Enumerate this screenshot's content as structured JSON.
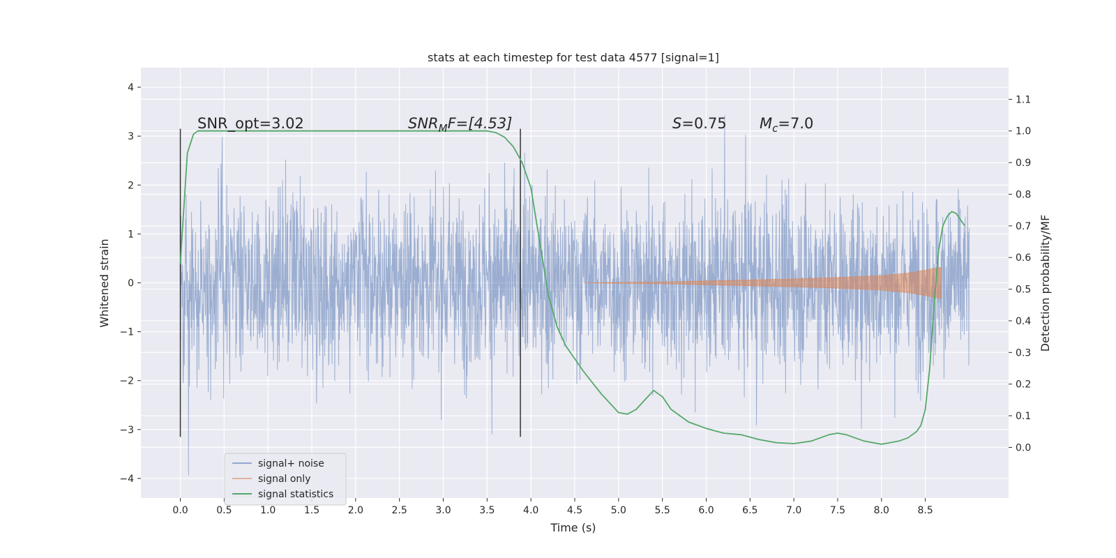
{
  "chart_data": {
    "type": "line",
    "title": "stats at each timestep for test data 4577 [signal=1]",
    "xlabel": "Time (s)",
    "ylabel": "Whitened strain",
    "y2label": "Detection probability/MF",
    "xlim": [
      -0.45,
      9.45
    ],
    "ylim": [
      -4.4,
      4.4
    ],
    "y2lim": [
      -0.16,
      1.2
    ],
    "x_ticks": [
      "0.0",
      "0.5",
      "1.0",
      "1.5",
      "2.0",
      "2.5",
      "3.0",
      "3.5",
      "4.0",
      "4.5",
      "5.0",
      "5.5",
      "6.0",
      "6.5",
      "7.0",
      "7.5",
      "8.0",
      "8.5"
    ],
    "y_ticks": [
      "4",
      "3",
      "2",
      "1",
      "0",
      "−1",
      "−2",
      "−3",
      "−4"
    ],
    "y2_ticks": [
      "1.1",
      "1.0",
      "0.9",
      "0.8",
      "0.7",
      "0.6",
      "0.5",
      "0.4",
      "0.3",
      "0.2",
      "0.1",
      "0.0"
    ],
    "grid": true,
    "legend_position": "lower-left",
    "colors": {
      "background": "#eaeaf2",
      "noise": "#4c72b0",
      "signal": "#dd8452",
      "stats": "#55a868",
      "vline": "#333333"
    },
    "annotations": {
      "snr_opt": "SNR_opt=3.02",
      "snr_mf_base": "SNR",
      "snr_mf_sub": "M",
      "snr_mf_rest": "F=[4.53]",
      "s_sym": "S",
      "s_val": "=0.75",
      "mc_sym": "M",
      "mc_sub": "c",
      "mc_val": "=7.0"
    },
    "vertical_lines_x": [
      0.0,
      3.88
    ],
    "series": [
      {
        "name": "signal+ noise",
        "x_range": [
          0.0,
          9.0
        ],
        "envelope_typical": [
          -2.5,
          2.7
        ],
        "extremes": [
          -4.0,
          4.0
        ]
      },
      {
        "name": "signal only",
        "x": [
          4.6,
          5.0,
          5.5,
          6.0,
          6.5,
          7.0,
          7.5,
          8.0,
          8.3,
          8.5,
          8.6,
          8.68
        ],
        "amplitude": [
          0.0,
          0.01,
          0.02,
          0.04,
          0.06,
          0.08,
          0.11,
          0.15,
          0.2,
          0.26,
          0.3,
          0.32
        ]
      },
      {
        "name": "signal statistics",
        "x": [
          0.0,
          0.08,
          0.15,
          0.2,
          0.3,
          0.5,
          1.0,
          2.0,
          3.0,
          3.5,
          3.6,
          3.7,
          3.8,
          3.9,
          4.0,
          4.1,
          4.2,
          4.3,
          4.4,
          4.6,
          4.8,
          5.0,
          5.1,
          5.2,
          5.3,
          5.4,
          5.5,
          5.6,
          5.8,
          6.0,
          6.2,
          6.4,
          6.6,
          6.8,
          7.0,
          7.2,
          7.4,
          7.5,
          7.6,
          7.8,
          8.0,
          8.2,
          8.3,
          8.4,
          8.45,
          8.5,
          8.55,
          8.6,
          8.65,
          8.7,
          8.75,
          8.8,
          8.85,
          8.9,
          8.95
        ],
        "y": [
          0.58,
          0.93,
          0.99,
          1.0,
          1.0,
          1.0,
          1.0,
          1.0,
          1.0,
          1.0,
          0.995,
          0.98,
          0.95,
          0.9,
          0.82,
          0.65,
          0.48,
          0.38,
          0.32,
          0.24,
          0.17,
          0.11,
          0.105,
          0.12,
          0.15,
          0.18,
          0.16,
          0.12,
          0.08,
          0.06,
          0.045,
          0.04,
          0.025,
          0.015,
          0.012,
          0.02,
          0.04,
          0.045,
          0.04,
          0.02,
          0.01,
          0.02,
          0.03,
          0.05,
          0.07,
          0.12,
          0.25,
          0.45,
          0.62,
          0.7,
          0.73,
          0.745,
          0.74,
          0.72,
          0.7
        ]
      }
    ],
    "legend": [
      "signal+ noise",
      "signal only",
      "signal statistics"
    ]
  }
}
